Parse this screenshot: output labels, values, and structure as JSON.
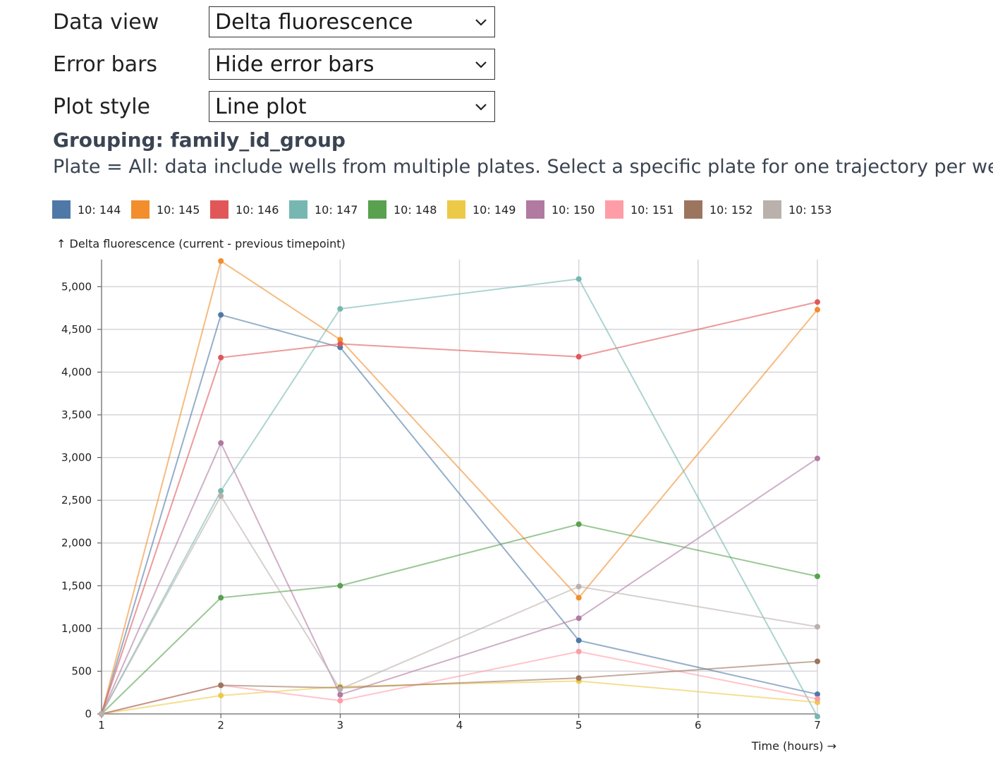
{
  "controls": [
    {
      "label": "Data view",
      "value": "Delta fluorescence"
    },
    {
      "label": "Error bars",
      "value": "Hide error bars"
    },
    {
      "label": "Plot style",
      "value": "Line plot"
    }
  ],
  "grouping": "Grouping: family_id_group",
  "plate_note": "Plate = All: data include wells from multiple plates. Select a specific plate for one trajectory per well.",
  "chart_data": {
    "type": "line",
    "ylabel": "↑ Delta fluorescence (current - previous timepoint)",
    "xlabel": "Time (hours) →",
    "xlim": [
      1,
      7
    ],
    "ylim": [
      0,
      5300
    ],
    "x_ticks": [
      "1",
      "2",
      "3",
      "4",
      "5",
      "6",
      "7"
    ],
    "y_ticks": [
      "0",
      "500",
      "1,000",
      "1,500",
      "2,000",
      "2,500",
      "3,000",
      "3,500",
      "4,000",
      "4,500",
      "5,000"
    ],
    "grid": true,
    "legend_position": "top",
    "x": [
      1,
      2,
      3,
      5,
      7
    ],
    "series": [
      {
        "name": "10: 144",
        "color": "#4e79a7",
        "values": [
          0,
          4670,
          4290,
          860,
          230
        ]
      },
      {
        "name": "10: 145",
        "color": "#f28e2b",
        "values": [
          0,
          5300,
          4380,
          1360,
          4730
        ]
      },
      {
        "name": "10: 146",
        "color": "#e15759",
        "values": [
          0,
          4170,
          4330,
          4180,
          4820
        ]
      },
      {
        "name": "10: 147",
        "color": "#76b7b2",
        "values": [
          0,
          2610,
          4740,
          5090,
          -30
        ]
      },
      {
        "name": "10: 148",
        "color": "#59a14f",
        "values": [
          0,
          1360,
          1500,
          2220,
          1610
        ]
      },
      {
        "name": "10: 149",
        "color": "#edc948",
        "values": [
          0,
          215,
          320,
          385,
          135
        ]
      },
      {
        "name": "10: 150",
        "color": "#b07aa1",
        "values": [
          0,
          3170,
          225,
          1120,
          2990
        ]
      },
      {
        "name": "10: 151",
        "color": "#ff9da7",
        "values": [
          0,
          335,
          155,
          730,
          175
        ]
      },
      {
        "name": "10: 152",
        "color": "#9c755f",
        "values": [
          0,
          335,
          305,
          420,
          615
        ]
      },
      {
        "name": "10: 153",
        "color": "#bab0ac",
        "values": [
          0,
          2550,
          290,
          1490,
          1020
        ]
      }
    ]
  }
}
